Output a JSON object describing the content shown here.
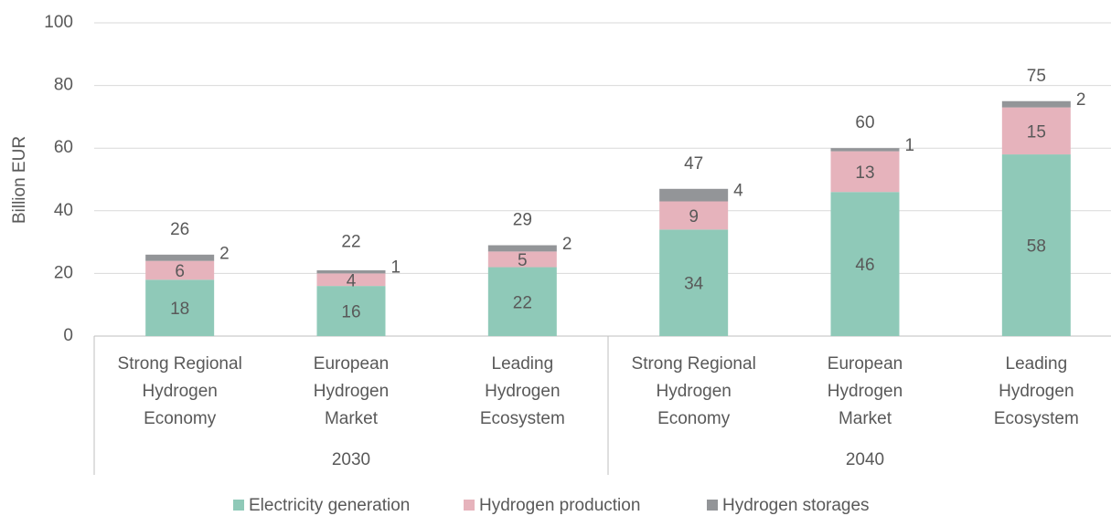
{
  "chart_data": {
    "type": "stacked-bar",
    "y_label": "Billion EUR",
    "groups": [
      {
        "name": "2030",
        "categories": [
          [
            "Strong Regional",
            "Hydrogen",
            "Economy"
          ],
          [
            "European",
            "Hydrogen",
            "Market"
          ],
          [
            "Leading",
            "Hydrogen",
            "Ecosystem"
          ]
        ]
      },
      {
        "name": "2040",
        "categories": [
          [
            "Strong Regional",
            "Hydrogen",
            "Economy"
          ],
          [
            "European",
            "Hydrogen",
            "Market"
          ],
          [
            "Leading",
            "Hydrogen",
            "Ecosystem"
          ]
        ]
      }
    ],
    "series": [
      {
        "name": "Electricity generation",
        "color": "#8fc9b8",
        "values": [
          18,
          16,
          22,
          34,
          46,
          58
        ]
      },
      {
        "name": "Hydrogen production",
        "color": "#e6b3bc",
        "values": [
          6,
          4,
          5,
          9,
          13,
          15
        ]
      },
      {
        "name": "Hydrogen storages",
        "color": "#939598",
        "values": [
          2,
          1,
          2,
          4,
          1,
          2
        ]
      }
    ],
    "totals": [
      26,
      22,
      29,
      47,
      60,
      75
    ],
    "ylim": [
      0,
      100
    ],
    "yticks": [
      0,
      20,
      40,
      60,
      80,
      100
    ],
    "grid": true
  }
}
